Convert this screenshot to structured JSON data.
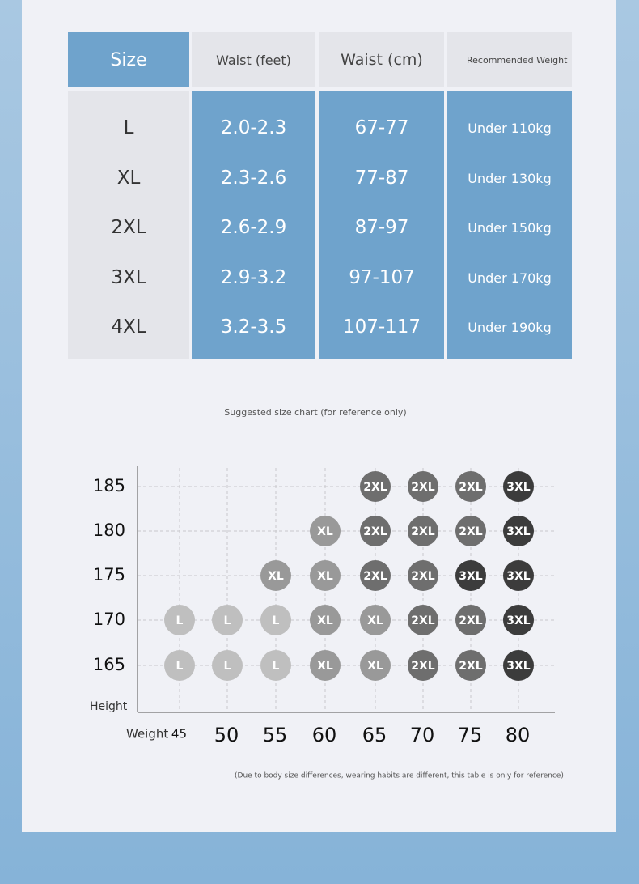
{
  "table": {
    "header": [
      "Size",
      "Waist (feet)",
      "Waist (cm)",
      "Recommended Weight"
    ],
    "rows": [
      [
        "L",
        "2.0-2.3",
        "67-77",
        "Under 110kg"
      ],
      [
        "XL",
        "2.3-2.6",
        "77-87",
        "Under 130kg"
      ],
      [
        "2XL",
        "2.6-2.9",
        "87-97",
        "Under 150kg"
      ],
      [
        "3XL",
        "2.9-3.2",
        "97-107",
        "Under 170kg"
      ],
      [
        "4XL",
        "3.2-3.5",
        "107-117",
        "Under 190kg"
      ]
    ]
  },
  "size_chart": {
    "caption": "Suggested size chart (for reference only)",
    "y_label": "Height",
    "x_label": "Weight",
    "heights": [
      185,
      180,
      175,
      170,
      165
    ],
    "weights": [
      45,
      50,
      55,
      60,
      65,
      70,
      75,
      80
    ],
    "cells": [
      [
        null,
        null,
        null,
        null,
        "2XL",
        "2XL",
        "2XL",
        "3XL"
      ],
      [
        null,
        null,
        null,
        "XL",
        "2XL",
        "2XL",
        "2XL",
        "3XL"
      ],
      [
        null,
        null,
        "XL",
        "XL",
        "2XL",
        "2XL",
        "3XL",
        "3XL"
      ],
      [
        "L",
        "L",
        "L",
        "XL",
        "XL",
        "2XL",
        "2XL",
        "3XL"
      ],
      [
        "L",
        "L",
        "L",
        "XL",
        "XL",
        "2XL",
        "2XL",
        "3XL"
      ]
    ],
    "size_colors": [
      "#bfbfbf",
      "#999999",
      "#6e6e6e",
      "#3c3c3c"
    ],
    "footnote": "(Due to body size differences, wearing habits are different, this table is only for reference)"
  }
}
